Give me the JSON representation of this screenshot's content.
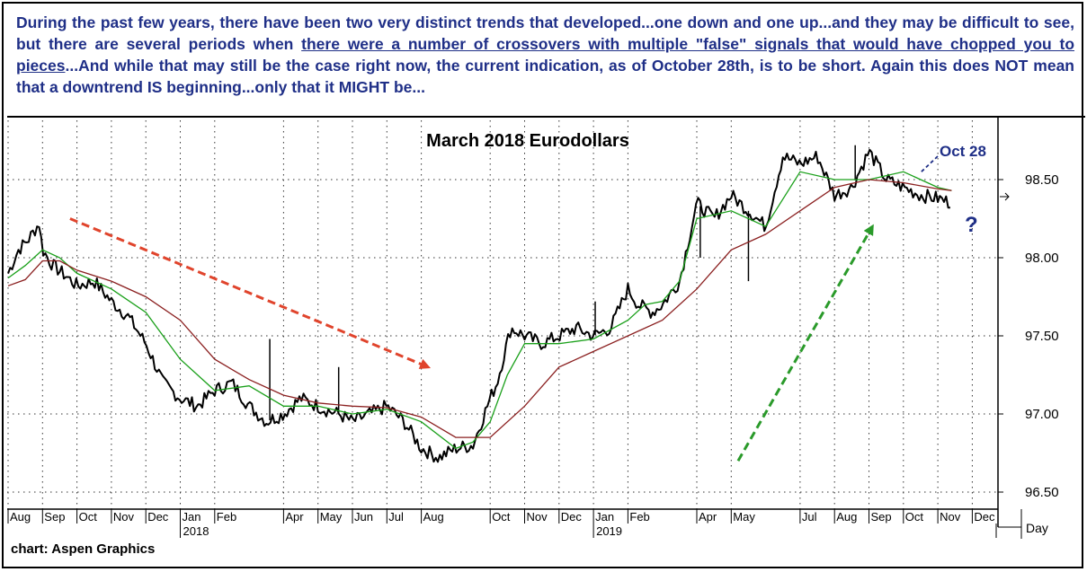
{
  "caption": {
    "part1": "During the past few years, there have been two very distinct trends that developed...one down and one up...and they may be difficult to see, but there are several periods when ",
    "underlined": "there were a number of crossovers with multiple \"false\" signals that would have chopped you to pieces",
    "part2": "...And while that may still be the case right now, the current indication, as of October 28th, is to be short. Again this does NOT mean that a downtrend IS beginning...only that it MIGHT be..."
  },
  "source": "chart: Aspen Graphics",
  "day_label": "Day",
  "colors": {
    "caption_text": "#1f2f87",
    "price": "#000000",
    "fast_ma": "#1aa01a",
    "slow_ma": "#8b2020",
    "down_arrow": "#e0442c",
    "up_arrow": "#2a9a2a",
    "grid": "#333333"
  },
  "chart_data": {
    "type": "line",
    "title": "March 2018 Eurodollars",
    "xlabel": "",
    "ylabel": "",
    "ylim": [
      96.4,
      98.75
    ],
    "y_ticks": [
      "96.50",
      "97.00",
      "97.50",
      "98.00",
      "98.50"
    ],
    "x_tick_labels": [
      "Aug",
      "Sep",
      "Oct",
      "Nov",
      "Dec",
      "Jan",
      "Feb",
      "Apr",
      "May",
      "Jun",
      "Jul",
      "Aug",
      "Oct",
      "Nov",
      "Dec",
      "Jan",
      "Feb",
      "Apr",
      "May",
      "Jul",
      "Aug",
      "Sep",
      "Oct",
      "Nov",
      "Dec"
    ],
    "year_labels": [
      "2018",
      "2019"
    ],
    "grid": true,
    "x_start": "2017-08",
    "x_end": "2019-12",
    "x_unit": "months",
    "series": [
      {
        "x": [
          0,
          0.3,
          0.6,
          0.9,
          1.0,
          1.3,
          1.7,
          2.0,
          2.5,
          3.0,
          3.5,
          4.0,
          4.5,
          5.0,
          5.5,
          6.0,
          6.5,
          7.0,
          7.5,
          8.0,
          8.5,
          9.0,
          9.3,
          9.6,
          10.0,
          10.5,
          11.0,
          11.5,
          12.0,
          12.5,
          13.0,
          13.5,
          14.0,
          14.2,
          14.6,
          15.0,
          15.5,
          16.0,
          16.5,
          17.0,
          17.5,
          18.0,
          18.3,
          18.7,
          19.0,
          19.5,
          20.0,
          20.5,
          21.0,
          21.5,
          22.0,
          22.5,
          23.0,
          23.5,
          24.0,
          24.5,
          25.0,
          25.5,
          26.0,
          26.5,
          27.0,
          27.4
        ],
        "values": [
          97.9,
          98.05,
          98.12,
          98.22,
          98.05,
          97.95,
          97.88,
          97.82,
          97.85,
          97.72,
          97.62,
          97.45,
          97.2,
          97.1,
          97.05,
          97.15,
          97.2,
          97.05,
          96.95,
          97.0,
          97.1,
          97.05,
          97.02,
          97.0,
          96.95,
          97.0,
          97.05,
          96.95,
          96.78,
          96.72,
          96.78,
          96.8,
          97.1,
          97.2,
          97.55,
          97.5,
          97.45,
          97.5,
          97.55,
          97.5,
          97.55,
          97.8,
          97.7,
          97.65,
          97.7,
          97.85,
          98.35,
          98.25,
          98.4,
          98.3,
          98.2,
          98.65,
          98.6,
          98.65,
          98.4,
          98.45,
          98.68,
          98.5,
          98.45,
          98.4,
          98.38,
          98.35
        ]
      },
      {
        "x": [
          0,
          0.5,
          1.0,
          1.5,
          2.0,
          3.0,
          4.0,
          5.0,
          6.0,
          7.0,
          8.0,
          9.0,
          10.0,
          11.0,
          12.0,
          13.0,
          13.5,
          14.0,
          14.5,
          15.0,
          16.0,
          17.0,
          18.0,
          18.5,
          19.0,
          19.5,
          20.0,
          21.0,
          22.0,
          23.0,
          24.0,
          25.0,
          26.0,
          27.0,
          27.4
        ],
        "values": [
          97.87,
          97.95,
          98.05,
          98.0,
          97.9,
          97.8,
          97.65,
          97.35,
          97.15,
          97.18,
          97.05,
          97.05,
          97.0,
          97.03,
          96.95,
          96.78,
          96.82,
          96.95,
          97.25,
          97.45,
          97.45,
          97.48,
          97.6,
          97.7,
          97.72,
          97.85,
          98.25,
          98.3,
          98.2,
          98.55,
          98.5,
          98.5,
          98.55,
          98.45,
          98.43
        ]
      },
      {
        "x": [
          0,
          0.5,
          1.0,
          1.5,
          2.0,
          3.0,
          4.0,
          5.0,
          6.0,
          7.0,
          8.0,
          9.0,
          10.0,
          11.0,
          12.0,
          13.0,
          14.0,
          15.0,
          16.0,
          17.0,
          18.0,
          19.0,
          20.0,
          21.0,
          22.0,
          23.0,
          24.0,
          25.0,
          26.0,
          27.0,
          27.4
        ],
        "values": [
          97.82,
          97.86,
          97.98,
          97.98,
          97.92,
          97.85,
          97.75,
          97.6,
          97.35,
          97.22,
          97.12,
          97.07,
          97.05,
          97.04,
          96.98,
          96.85,
          96.85,
          97.05,
          97.3,
          97.4,
          97.5,
          97.6,
          97.8,
          98.05,
          98.15,
          98.3,
          98.45,
          98.5,
          98.48,
          98.44,
          98.43
        ]
      }
    ],
    "annotations": [
      {
        "text": "Oct 28",
        "x": 25.9,
        "y": 98.47
      },
      {
        "text": "?",
        "x": 26.9,
        "y": 98.18
      }
    ],
    "trend_arrows": [
      {
        "direction": "down",
        "from": [
          1.8,
          98.25
        ],
        "to": [
          12.2,
          97.3
        ]
      },
      {
        "direction": "up",
        "from": [
          21.2,
          96.7
        ],
        "to": [
          25.1,
          98.2
        ]
      }
    ]
  }
}
